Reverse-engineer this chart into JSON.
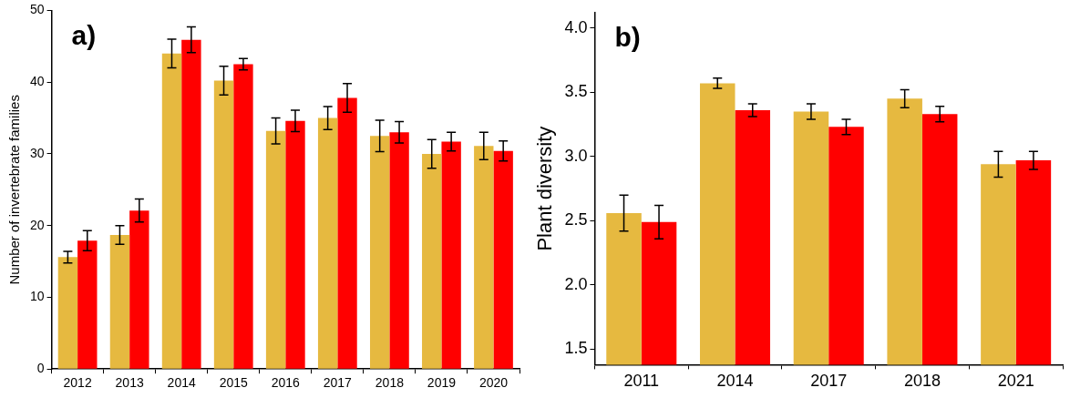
{
  "chart_data": [
    {
      "type": "bar",
      "title": "a)",
      "ylabel": "Number of invertebrate families",
      "categories": [
        "2012",
        "2013",
        "2014",
        "2015",
        "2016",
        "2017",
        "2018",
        "2019",
        "2020"
      ],
      "series": [
        {
          "color": "#e6b940",
          "values": [
            15.6,
            18.7,
            44.0,
            40.2,
            33.2,
            35.0,
            32.5,
            30.0,
            31.1
          ],
          "errors": [
            0.8,
            1.3,
            2.0,
            2.0,
            1.8,
            1.6,
            2.2,
            2.0,
            1.9
          ]
        },
        {
          "color": "#ff0000",
          "values": [
            17.9,
            22.1,
            45.9,
            42.5,
            34.6,
            37.8,
            33.0,
            31.7,
            30.4
          ],
          "errors": [
            1.4,
            1.6,
            1.8,
            0.8,
            1.5,
            2.0,
            1.5,
            1.3,
            1.4
          ]
        }
      ],
      "ylim": [
        0,
        50
      ],
      "yticks": [
        0,
        10,
        20,
        30,
        40,
        50
      ],
      "grid": false,
      "legend": false
    },
    {
      "type": "bar",
      "title": "b)",
      "ylabel": "Plant diversity",
      "categories": [
        "2011",
        "2014",
        "2017",
        "2018",
        "2021"
      ],
      "series": [
        {
          "color": "#e6b940",
          "values": [
            2.56,
            3.57,
            3.35,
            3.45,
            2.94
          ],
          "errors": [
            0.14,
            0.04,
            0.06,
            0.07,
            0.1
          ]
        },
        {
          "color": "#ff0000",
          "values": [
            2.49,
            3.36,
            3.23,
            3.33,
            2.97
          ],
          "errors": [
            0.13,
            0.05,
            0.06,
            0.06,
            0.07
          ]
        }
      ],
      "ylim": [
        1.38,
        4.12
      ],
      "yticks": [
        {
          "value": 1.5,
          "label": "1.5"
        },
        {
          "value": 2,
          "label": "2.0"
        },
        {
          "value": 2.5,
          "label": "2.5"
        },
        {
          "value": 3,
          "label": "3.0"
        },
        {
          "value": 3.5,
          "label": "3.5"
        },
        {
          "value": 4,
          "label": "4.0"
        }
      ],
      "grid": false,
      "legend": false
    }
  ]
}
